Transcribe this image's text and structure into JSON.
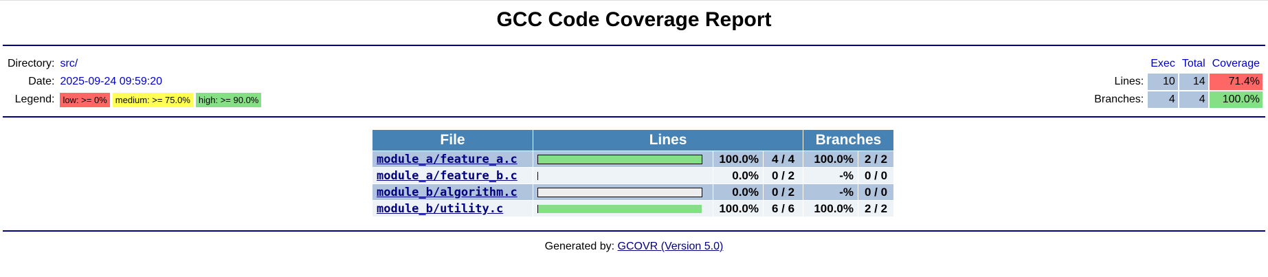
{
  "header": {
    "title": "GCC Code Coverage Report",
    "info": [
      {
        "label": "Directory:",
        "value": "src/"
      },
      {
        "label": "Date:",
        "value": "2025-09-24 09:59:20"
      }
    ],
    "legend_label": "Legend:",
    "legend": [
      "low: >= 0%",
      "medium: >= 75.0%",
      "high: >= 90.0%"
    ],
    "summary": {
      "columns": [
        "Exec",
        "Total",
        "Coverage"
      ],
      "rows": [
        {
          "label": "Lines:",
          "exec": 10,
          "total": 14,
          "coverage": "71.4%"
        },
        {
          "label": "Branches:",
          "exec": 4,
          "total": 4,
          "coverage": "100.0%"
        }
      ]
    }
  },
  "table": {
    "columns": [
      "File",
      "Lines",
      "Branches"
    ],
    "rows": [
      {
        "file": "module_a/feature_a.c",
        "line_percent": 100.0,
        "line_percent_label": "100.0%",
        "lines": "4 / 4",
        "branch_percent": "100.0%",
        "branches": "2 / 2"
      },
      {
        "file": "module_a/feature_b.c",
        "line_percent": 0.0,
        "line_percent_label": "0.0%",
        "lines": "0 / 2",
        "branch_percent": "-%",
        "branches": "0 / 0"
      },
      {
        "file": "module_b/algorithm.c",
        "line_percent": 0.0,
        "line_percent_label": "0.0%",
        "lines": "0 / 2",
        "branch_percent": "-%",
        "branches": "0 / 0"
      },
      {
        "file": "module_b/utility.c",
        "line_percent": 100.0,
        "line_percent_label": "100.0%",
        "lines": "6 / 6",
        "branch_percent": "100.0%",
        "branches": "2 / 2"
      }
    ]
  },
  "footer": {
    "text": "Generated by:",
    "link": "GCOVR (Version 5.0)"
  }
}
